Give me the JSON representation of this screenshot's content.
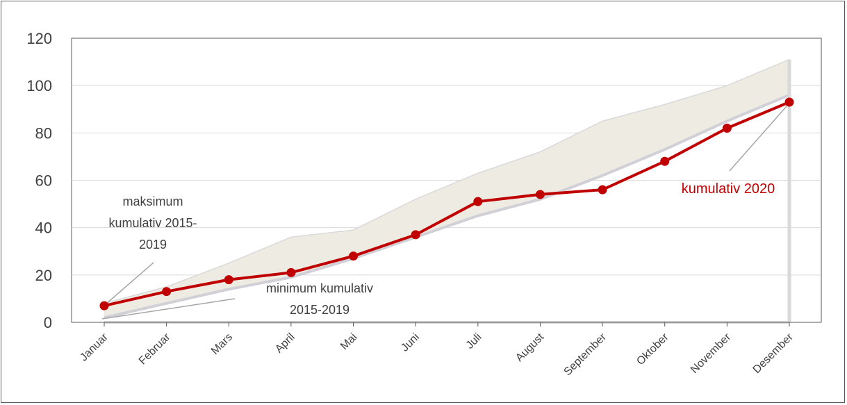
{
  "chart_data": {
    "type": "line",
    "title": "",
    "xlabel": "",
    "ylabel": "",
    "ylim": [
      0,
      120
    ],
    "yticks": [
      0,
      20,
      40,
      60,
      80,
      100,
      120
    ],
    "grid": true,
    "categories": [
      "Januar",
      "Februar",
      "Mars",
      "April",
      "Mai",
      "Juni",
      "Juli",
      "August",
      "September",
      "Oktober",
      "November",
      "Desember"
    ],
    "band": {
      "upper": [
        8,
        15,
        25,
        36,
        39,
        52,
        63,
        72,
        85,
        92,
        100,
        111
      ],
      "lower": [
        2,
        8,
        14,
        19,
        27,
        36,
        45,
        52,
        62,
        73,
        85,
        96
      ]
    },
    "series": [
      {
        "name": "kumulativ 2020",
        "values": [
          7,
          13,
          18,
          21,
          28,
          37,
          51,
          54,
          56,
          68,
          82,
          93
        ]
      }
    ],
    "annotations": {
      "max_line1": "maksimum",
      "max_line2": "kumulativ 2015-",
      "max_line3": "2019",
      "min_line1": "minimum kumulativ",
      "min_line2": "2015-2019",
      "series_label": "kumulativ 2020"
    },
    "colors": {
      "series": "#c00000",
      "band_fill": "#eeebe3",
      "band_edge": "#d9d9d9",
      "grid": "#d9d9d9",
      "axis": "#404040"
    }
  }
}
